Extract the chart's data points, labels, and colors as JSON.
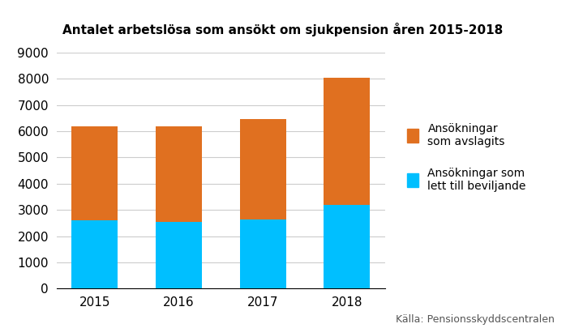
{
  "title": "Antalet arbetslösa som ansökt om sjukpension åren 2015-2018",
  "years": [
    "2015",
    "2016",
    "2017",
    "2018"
  ],
  "beviljande": [
    2600,
    2550,
    2650,
    3200
  ],
  "avslagits": [
    3600,
    3650,
    3800,
    4850
  ],
  "color_beviljande": "#00BFFF",
  "color_avslagits": "#E07020",
  "ylim": [
    0,
    9000
  ],
  "yticks": [
    0,
    1000,
    2000,
    3000,
    4000,
    5000,
    6000,
    7000,
    8000,
    9000
  ],
  "legend_avslagits": "Ansökningar\nsom avslagits",
  "legend_beviljande": "Ansökningar som\nlett till beviljande",
  "source": "Källa: Pensionsskyddscentralen",
  "background_color": "#FFFFFF",
  "bar_width": 0.55
}
